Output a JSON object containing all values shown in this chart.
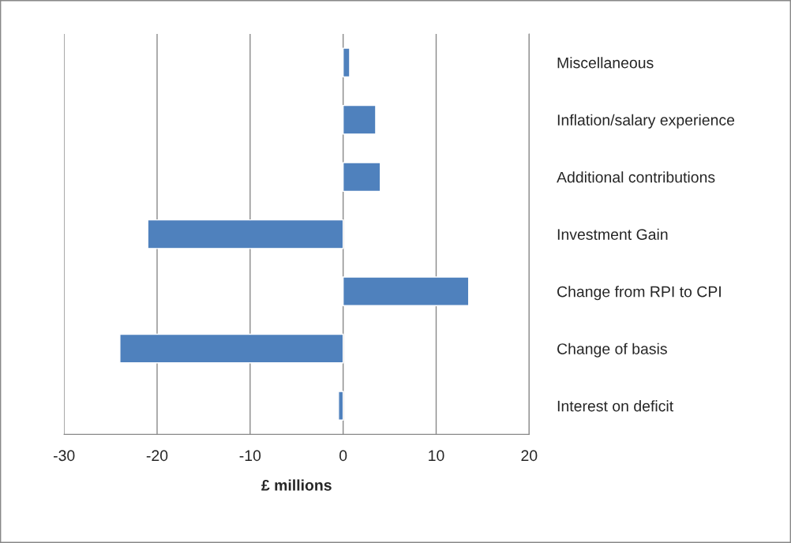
{
  "chart_data": {
    "type": "bar",
    "orientation": "horizontal",
    "categories": [
      "Miscellaneous",
      "Inflation/salary experience",
      "Additional contributions",
      "Investment Gain",
      "Change from RPI to CPI",
      "Change of basis",
      "Interest on deficit"
    ],
    "values": [
      0.7,
      3.5,
      4.0,
      -21,
      13.5,
      -24,
      -0.5
    ],
    "color": "#4f81bd",
    "xlim": [
      -30,
      20
    ],
    "xticks": [
      -30,
      -20,
      -10,
      0,
      10,
      20
    ],
    "xlabel": "£ millions",
    "grid": "x",
    "legend": false
  }
}
